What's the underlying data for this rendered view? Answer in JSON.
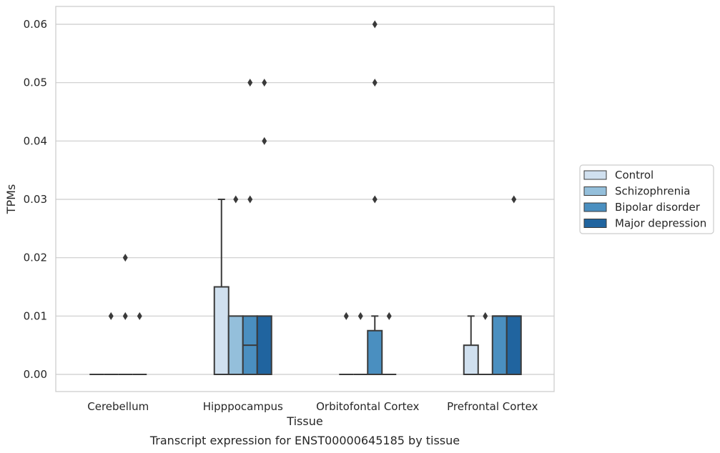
{
  "chart_data": {
    "type": "boxplot",
    "caption": "Transcript expression for ENST00000645185 by tissue",
    "xlabel": "Tissue",
    "ylabel": "TPMs",
    "ylim": [
      -0.003,
      0.063
    ],
    "yticks": [
      0.0,
      0.01,
      0.02,
      0.03,
      0.04,
      0.05,
      0.06
    ],
    "ytick_labels": [
      "0.00",
      "0.01",
      "0.02",
      "0.03",
      "0.04",
      "0.05",
      "0.06"
    ],
    "grid": true,
    "legend_position": "right",
    "categories": [
      "Cerebellum",
      "Hipppocampus",
      "Orbitofontal Cortex",
      "Prefrontal Cortex"
    ],
    "series": [
      {
        "name": "Control",
        "color": "#d0e0ef",
        "boxes": [
          {
            "q1": 0,
            "median": 0,
            "q3": 0,
            "whisker_low": 0,
            "whisker_high": 0,
            "outliers": []
          },
          {
            "q1": 0,
            "median": 0,
            "q3": 0.015,
            "whisker_low": 0,
            "whisker_high": 0.03,
            "outliers": []
          },
          {
            "q1": 0,
            "median": 0,
            "q3": 0,
            "whisker_low": 0,
            "whisker_high": 0,
            "outliers": [
              0.01
            ]
          },
          {
            "q1": 0,
            "median": 0,
            "q3": 0.005,
            "whisker_low": 0,
            "whisker_high": 0.01,
            "outliers": []
          }
        ]
      },
      {
        "name": "Schizophrenia",
        "color": "#94bfdb",
        "boxes": [
          {
            "q1": 0,
            "median": 0,
            "q3": 0,
            "whisker_low": 0,
            "whisker_high": 0,
            "outliers": [
              0.01
            ]
          },
          {
            "q1": 0,
            "median": 0,
            "q3": 0.01,
            "whisker_low": 0,
            "whisker_high": 0.01,
            "outliers": [
              0.03
            ]
          },
          {
            "q1": 0,
            "median": 0,
            "q3": 0,
            "whisker_low": 0,
            "whisker_high": 0,
            "outliers": [
              0.01
            ]
          },
          {
            "q1": 0,
            "median": 0,
            "q3": 0,
            "whisker_low": 0,
            "whisker_high": 0,
            "outliers": [
              0.01
            ]
          }
        ]
      },
      {
        "name": "Bipolar disorder",
        "color": "#4a8fc0",
        "boxes": [
          {
            "q1": 0,
            "median": 0,
            "q3": 0,
            "whisker_low": 0,
            "whisker_high": 0,
            "outliers": [
              0.01,
              0.02
            ]
          },
          {
            "q1": 0,
            "median": 0.005,
            "q3": 0.01,
            "whisker_low": 0,
            "whisker_high": 0.01,
            "outliers": [
              0.03,
              0.05
            ]
          },
          {
            "q1": 0,
            "median": 0,
            "q3": 0.0075,
            "whisker_low": 0,
            "whisker_high": 0.01,
            "outliers": [
              0.03,
              0.05,
              0.06
            ]
          },
          {
            "q1": 0,
            "median": 0.01,
            "q3": 0.01,
            "whisker_low": 0,
            "whisker_high": 0.01,
            "outliers": []
          }
        ]
      },
      {
        "name": "Major depression",
        "color": "#20649f",
        "boxes": [
          {
            "q1": 0,
            "median": 0,
            "q3": 0,
            "whisker_low": 0,
            "whisker_high": 0,
            "outliers": [
              0.01
            ]
          },
          {
            "q1": 0,
            "median": 0,
            "q3": 0.01,
            "whisker_low": 0,
            "whisker_high": 0.01,
            "outliers": [
              0.04,
              0.05
            ]
          },
          {
            "q1": 0,
            "median": 0,
            "q3": 0,
            "whisker_low": 0,
            "whisker_high": 0,
            "outliers": [
              0.01
            ]
          },
          {
            "q1": 0,
            "median": 0.01,
            "q3": 0.01,
            "whisker_low": 0,
            "whisker_high": 0.01,
            "outliers": [
              0.03
            ]
          }
        ]
      }
    ]
  }
}
